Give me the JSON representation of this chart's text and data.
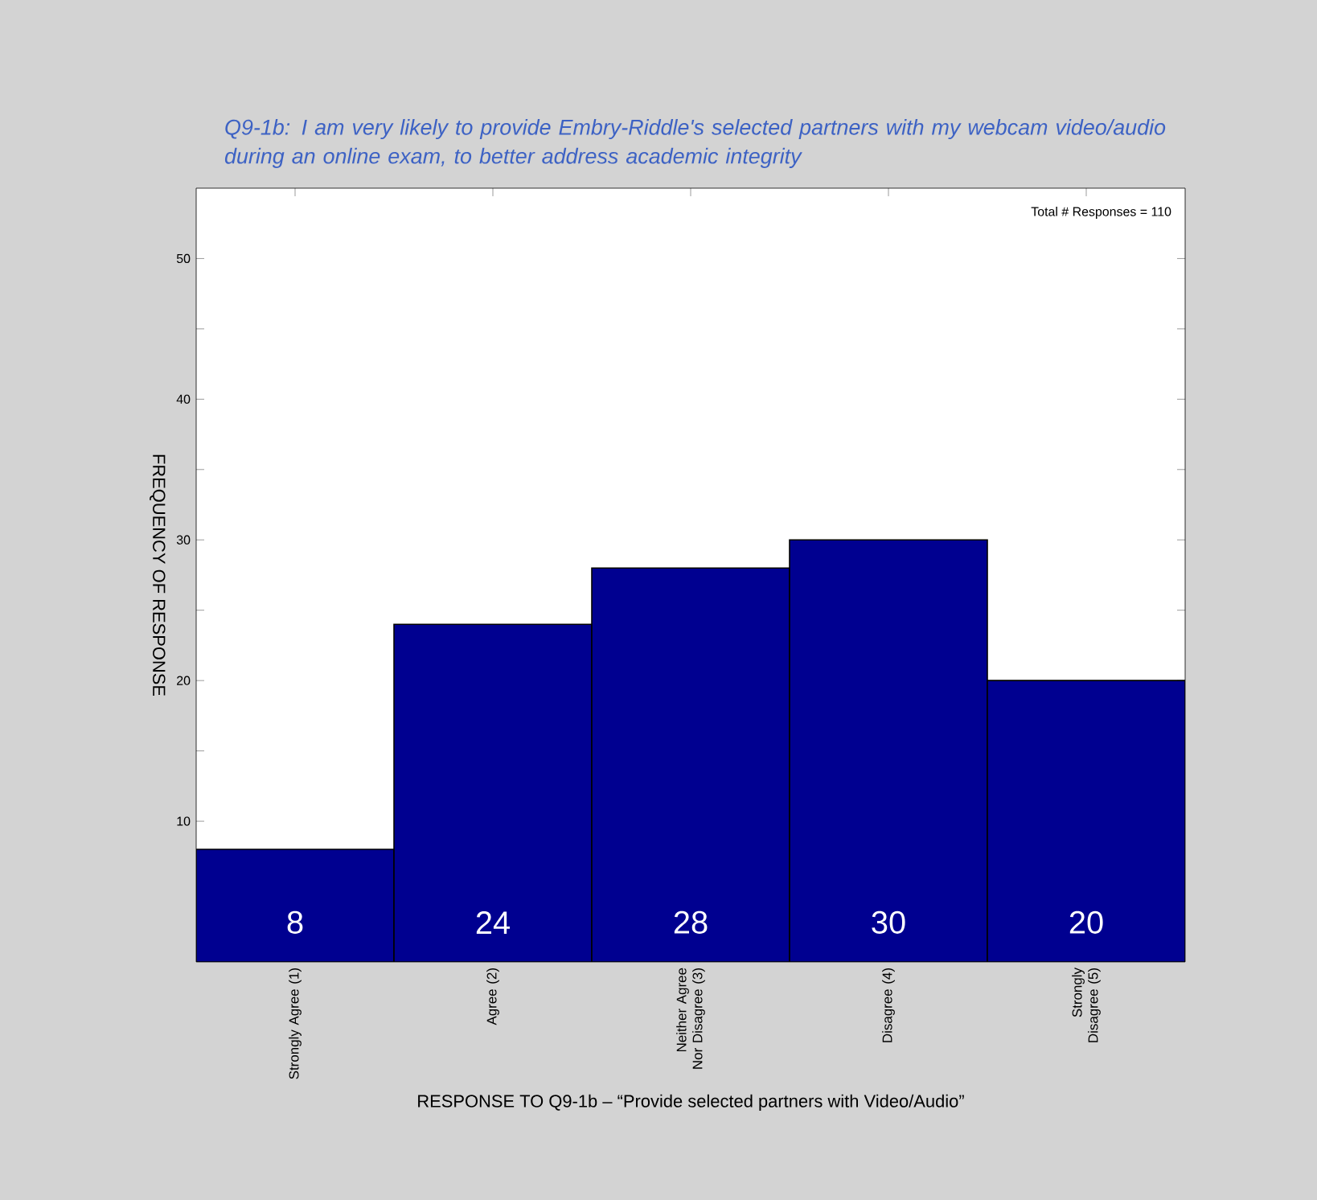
{
  "chart_data": {
    "type": "bar",
    "title": "Q9-1b: I am very likely to provide Embry-Riddle's selected partners with my webcam video/audio during an online exam, to better address academic integrity",
    "xlabel": "RESPONSE TO Q9-1b – “Provide selected partners with Video/Audio”",
    "ylabel": "FREQUENCY OF RESPONSE",
    "categories": [
      "Strongly Agree (1)",
      "Agree (2)",
      "Neither Agree Nor Disagree (3)",
      "Disagree (4)",
      "Strongly Disagree (5)"
    ],
    "values": [
      8,
      24,
      28,
      30,
      20
    ],
    "color": "#000090",
    "data_labels": true,
    "ylim": [
      0,
      55
    ],
    "yticks": [
      10,
      {
        "value": 15,
        "label": null
      },
      20,
      {
        "value": 25,
        "label": null
      },
      30,
      {
        "value": 35,
        "label": null
      },
      40,
      {
        "value": 45,
        "label": null
      },
      50
    ],
    "annotations": [
      "Total # Responses = 110"
    ]
  }
}
